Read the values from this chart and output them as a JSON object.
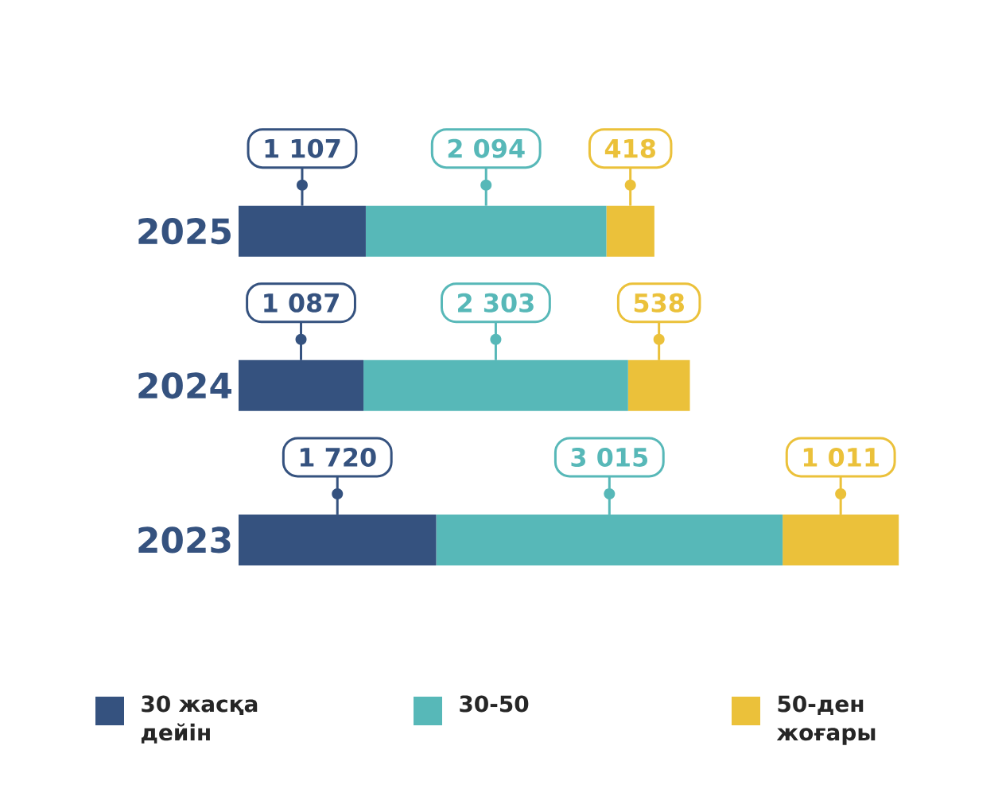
{
  "chart_data": {
    "type": "bar",
    "orientation": "horizontal",
    "stacked": true,
    "categories": [
      "2025",
      "2024",
      "2023"
    ],
    "series": [
      {
        "name": "30 жасқа дейін",
        "color": "#35527f",
        "values": [
          1107,
          1087,
          1720
        ],
        "value_labels": [
          "1 107",
          "1 087",
          "1 720"
        ]
      },
      {
        "name": "30-50",
        "color": "#57b8b8",
        "values": [
          2094,
          2303,
          3015
        ],
        "value_labels": [
          "2 094",
          "2 303",
          "3 015"
        ]
      },
      {
        "name": "50-ден жоғары",
        "color": "#ebc13a",
        "values": [
          418,
          538,
          1011
        ],
        "value_labels": [
          "418",
          "538",
          "1 011"
        ]
      }
    ],
    "tick_labels": "y",
    "grid": false,
    "legend": "bottom"
  }
}
